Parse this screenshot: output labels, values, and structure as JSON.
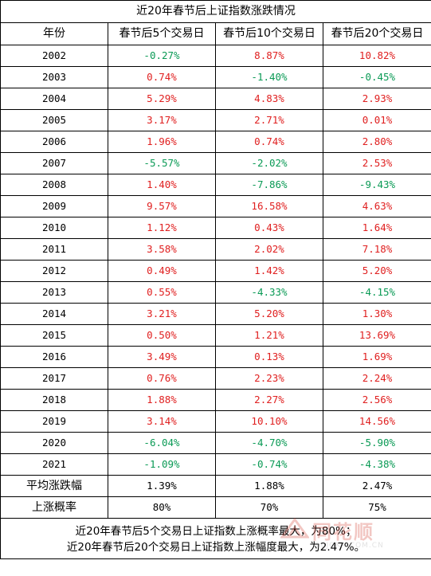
{
  "title": "近20年春节后上证指数涨跌情况",
  "headers": [
    "年份",
    "春节后5个交易日",
    "春节后10个交易日",
    "春节后20个交易日"
  ],
  "rows": [
    {
      "year": "2002",
      "d5": "-0.27%",
      "d10": "8.87%",
      "d20": "10.82%"
    },
    {
      "year": "2003",
      "d5": "0.74%",
      "d10": "-1.40%",
      "d20": "-0.45%"
    },
    {
      "year": "2004",
      "d5": "5.29%",
      "d10": "4.83%",
      "d20": "2.93%"
    },
    {
      "year": "2005",
      "d5": "3.17%",
      "d10": "2.71%",
      "d20": "0.01%"
    },
    {
      "year": "2006",
      "d5": "1.96%",
      "d10": "0.74%",
      "d20": "2.80%"
    },
    {
      "year": "2007",
      "d5": "-5.57%",
      "d10": "-2.02%",
      "d20": "2.53%"
    },
    {
      "year": "2008",
      "d5": "1.40%",
      "d10": "-7.86%",
      "d20": "-9.43%"
    },
    {
      "year": "2009",
      "d5": "9.57%",
      "d10": "16.58%",
      "d20": "4.63%"
    },
    {
      "year": "2010",
      "d5": "1.12%",
      "d10": "0.43%",
      "d20": "1.64%"
    },
    {
      "year": "2011",
      "d5": "3.58%",
      "d10": "2.02%",
      "d20": "7.18%"
    },
    {
      "year": "2012",
      "d5": "0.49%",
      "d10": "1.42%",
      "d20": "5.20%"
    },
    {
      "year": "2013",
      "d5": "0.55%",
      "d10": "-4.33%",
      "d20": "-4.15%"
    },
    {
      "year": "2014",
      "d5": "3.21%",
      "d10": "5.20%",
      "d20": "1.30%"
    },
    {
      "year": "2015",
      "d5": "0.50%",
      "d10": "1.21%",
      "d20": "13.69%"
    },
    {
      "year": "2016",
      "d5": "3.49%",
      "d10": "0.13%",
      "d20": "1.69%"
    },
    {
      "year": "2017",
      "d5": "0.76%",
      "d10": "2.23%",
      "d20": "2.24%"
    },
    {
      "year": "2018",
      "d5": "1.88%",
      "d10": "2.27%",
      "d20": "2.56%"
    },
    {
      "year": "2019",
      "d5": "3.14%",
      "d10": "10.10%",
      "d20": "14.56%"
    },
    {
      "year": "2020",
      "d5": "-6.04%",
      "d10": "-4.70%",
      "d20": "-5.90%"
    },
    {
      "year": "2021",
      "d5": "-1.09%",
      "d10": "-0.74%",
      "d20": "-4.38%"
    }
  ],
  "average": {
    "label": "平均涨跌幅",
    "d5": "1.39%",
    "d10": "1.88%",
    "d20": "2.47%"
  },
  "probability": {
    "label": "上涨概率",
    "d5": "80%",
    "d10": "70%",
    "d20": "75%"
  },
  "note": {
    "line1": "近20年春节后5个交易日上证指数上涨概率最大，为80%；",
    "line2": "近20年春节后20个交易日上证指数上涨幅度最大，为2.47%。"
  },
  "watermark": {
    "brand": "同花顺",
    "site": "10JQKA.COM.CN"
  },
  "colors": {
    "up": "#e02020",
    "down": "#0a9a55",
    "border": "#000000"
  }
}
